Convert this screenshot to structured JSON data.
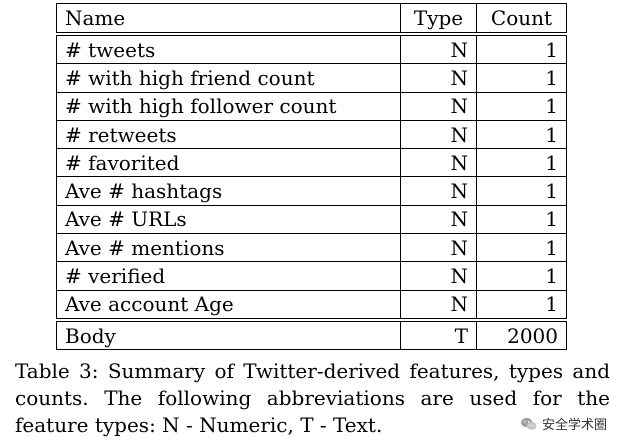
{
  "table": {
    "headers": {
      "name": "Name",
      "type": "Type",
      "count": "Count"
    },
    "rows": [
      {
        "name": "# tweets",
        "type": "N",
        "count": "1"
      },
      {
        "name": "# with high friend count",
        "type": "N",
        "count": "1"
      },
      {
        "name": "# with high follower count",
        "type": "N",
        "count": "1"
      },
      {
        "name": "# retweets",
        "type": "N",
        "count": "1"
      },
      {
        "name": "# favorited",
        "type": "N",
        "count": "1"
      },
      {
        "name": "Ave # hashtags",
        "type": "N",
        "count": "1"
      },
      {
        "name": "Ave # URLs",
        "type": "N",
        "count": "1"
      },
      {
        "name": "Ave # mentions",
        "type": "N",
        "count": "1"
      },
      {
        "name": "# verified",
        "type": "N",
        "count": "1"
      },
      {
        "name": "Ave account Age",
        "type": "N",
        "count": "1"
      },
      {
        "name": "Body",
        "type": "T",
        "count": "2000"
      }
    ]
  },
  "caption": "Table 3: Summary of Twitter-derived features, types and counts. The following abbreviations are used for the feature types: N - Numeric, T - Text.",
  "watermark": {
    "icon": "wechat-icon",
    "text": "安全学术圈"
  }
}
